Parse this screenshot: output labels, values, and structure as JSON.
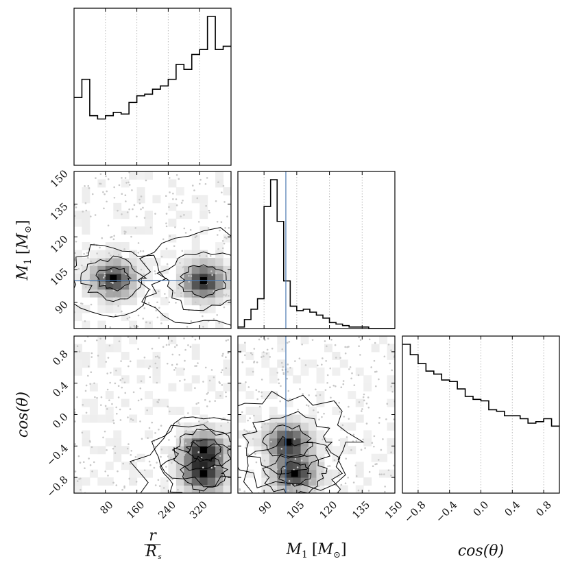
{
  "chart_data": {
    "type": "corner",
    "title": "",
    "parameters": [
      {
        "name": "r_over_rs",
        "label_num": "r",
        "label_den": "R",
        "label_den_sub": "s",
        "range": [
          0,
          400
        ],
        "ticks": [
          80,
          160,
          240,
          320
        ],
        "tick_labels": [
          "80",
          "160",
          "240",
          "320"
        ]
      },
      {
        "name": "m1",
        "label_main": "M",
        "label_sub": "1",
        "label_unit": "[M",
        "label_unit_sub": "⊙",
        "label_close": "]",
        "range": [
          78,
          150
        ],
        "ticks": [
          90,
          105,
          120,
          135,
          150
        ],
        "tick_labels": [
          "90",
          "105",
          "120",
          "135",
          "150"
        ],
        "truth": 100
      },
      {
        "name": "cos_theta",
        "label": "cos(θ)",
        "range": [
          -1,
          1
        ],
        "ticks": [
          -0.8,
          -0.4,
          0.0,
          0.4,
          0.8
        ],
        "tick_labels": [
          "−0.8",
          "−0.4",
          "0.0",
          "0.4",
          "0.8"
        ]
      }
    ],
    "histograms": {
      "r_over_rs": {
        "bin_edges_start": 0,
        "bin_width": 20,
        "counts": [
          0.41,
          0.52,
          0.3,
          0.28,
          0.3,
          0.32,
          0.31,
          0.38,
          0.42,
          0.43,
          0.46,
          0.48,
          0.52,
          0.61,
          0.58,
          0.67,
          0.7,
          0.9,
          0.7,
          0.72
        ]
      },
      "m1": {
        "bin_edges_start": 78,
        "bin_width": 3,
        "counts": [
          0.01,
          0.06,
          0.13,
          0.2,
          0.82,
          1.0,
          0.72,
          0.32,
          0.15,
          0.12,
          0.13,
          0.11,
          0.09,
          0.07,
          0.04,
          0.03,
          0.02,
          0.01,
          0.01,
          0.01,
          0.0,
          0.0,
          0.0,
          0.0
        ]
      },
      "cos_theta": {
        "bin_edges_start": -1.0,
        "bin_width": 0.1,
        "counts": [
          1.0,
          0.93,
          0.87,
          0.82,
          0.8,
          0.76,
          0.75,
          0.7,
          0.65,
          0.63,
          0.62,
          0.56,
          0.55,
          0.52,
          0.52,
          0.5,
          0.47,
          0.48,
          0.5,
          0.45
        ]
      }
    },
    "density_peaks": {
      "r_vs_m1": [
        [
          330,
          100
        ],
        [
          100,
          101
        ]
      ],
      "r_vs_cos": [
        [
          330,
          -0.75
        ],
        [
          330,
          -0.45
        ]
      ],
      "m1_vs_cos": [
        [
          101,
          -0.35
        ],
        [
          104,
          -0.75
        ]
      ]
    },
    "truth_lines": {
      "m1": 100
    },
    "grid": "dotted vertical lines at ticks on diagonal panels"
  }
}
